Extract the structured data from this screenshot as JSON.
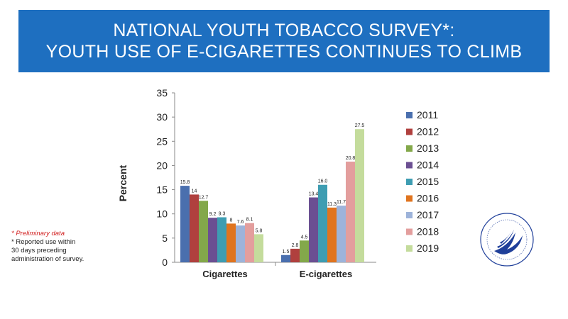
{
  "banner": {
    "line1": "NATIONAL YOUTH TOBACCO SURVEY*:",
    "line2": "YOUTH USE OF E-CIGARETTES CONTINUES TO CLIMB"
  },
  "notes": {
    "preliminary": "*  Preliminary data",
    "reported_l1": "*   Reported use within",
    "reported_l2": "30 days preceding",
    "reported_l3": "administration of survey."
  },
  "chart_data": {
    "type": "bar",
    "title": "",
    "ylabel": "Percent",
    "xlabel": "",
    "ylim": [
      0,
      35
    ],
    "yticks": [
      0,
      5,
      10,
      15,
      20,
      25,
      30,
      35
    ],
    "categories": [
      "Cigarettes",
      "E-cigarettes"
    ],
    "legend_position": "right",
    "grid": false,
    "series": [
      {
        "name": "2011",
        "color": "#4a6fae",
        "values": [
          15.8,
          1.5
        ],
        "labels": [
          "15.8",
          "1.5"
        ]
      },
      {
        "name": "2012",
        "color": "#b0403e",
        "values": [
          14,
          2.8
        ],
        "labels": [
          "14",
          "2.8"
        ]
      },
      {
        "name": "2013",
        "color": "#83a84a",
        "values": [
          12.7,
          4.5
        ],
        "labels": [
          "12.7",
          "4.5"
        ]
      },
      {
        "name": "2014",
        "color": "#6b4f92",
        "values": [
          9.2,
          13.4
        ],
        "labels": [
          "9.2",
          "13.4"
        ]
      },
      {
        "name": "2015",
        "color": "#3e9db2",
        "values": [
          9.3,
          16.0
        ],
        "labels": [
          "9.3",
          "16.0"
        ]
      },
      {
        "name": "2016",
        "color": "#e0741f",
        "values": [
          8,
          11.3
        ],
        "labels": [
          "8",
          "11.3"
        ]
      },
      {
        "name": "2017",
        "color": "#9db3da",
        "values": [
          7.6,
          11.7
        ],
        "labels": [
          "7.6",
          "11.7"
        ]
      },
      {
        "name": "2018",
        "color": "#e39e9d",
        "values": [
          8.1,
          20.8
        ],
        "labels": [
          "8.1",
          "20.8"
        ]
      },
      {
        "name": "2019",
        "color": "#c4dc9c",
        "values": [
          5.8,
          27.5
        ],
        "labels": [
          "5.8",
          "27.5"
        ]
      }
    ]
  }
}
